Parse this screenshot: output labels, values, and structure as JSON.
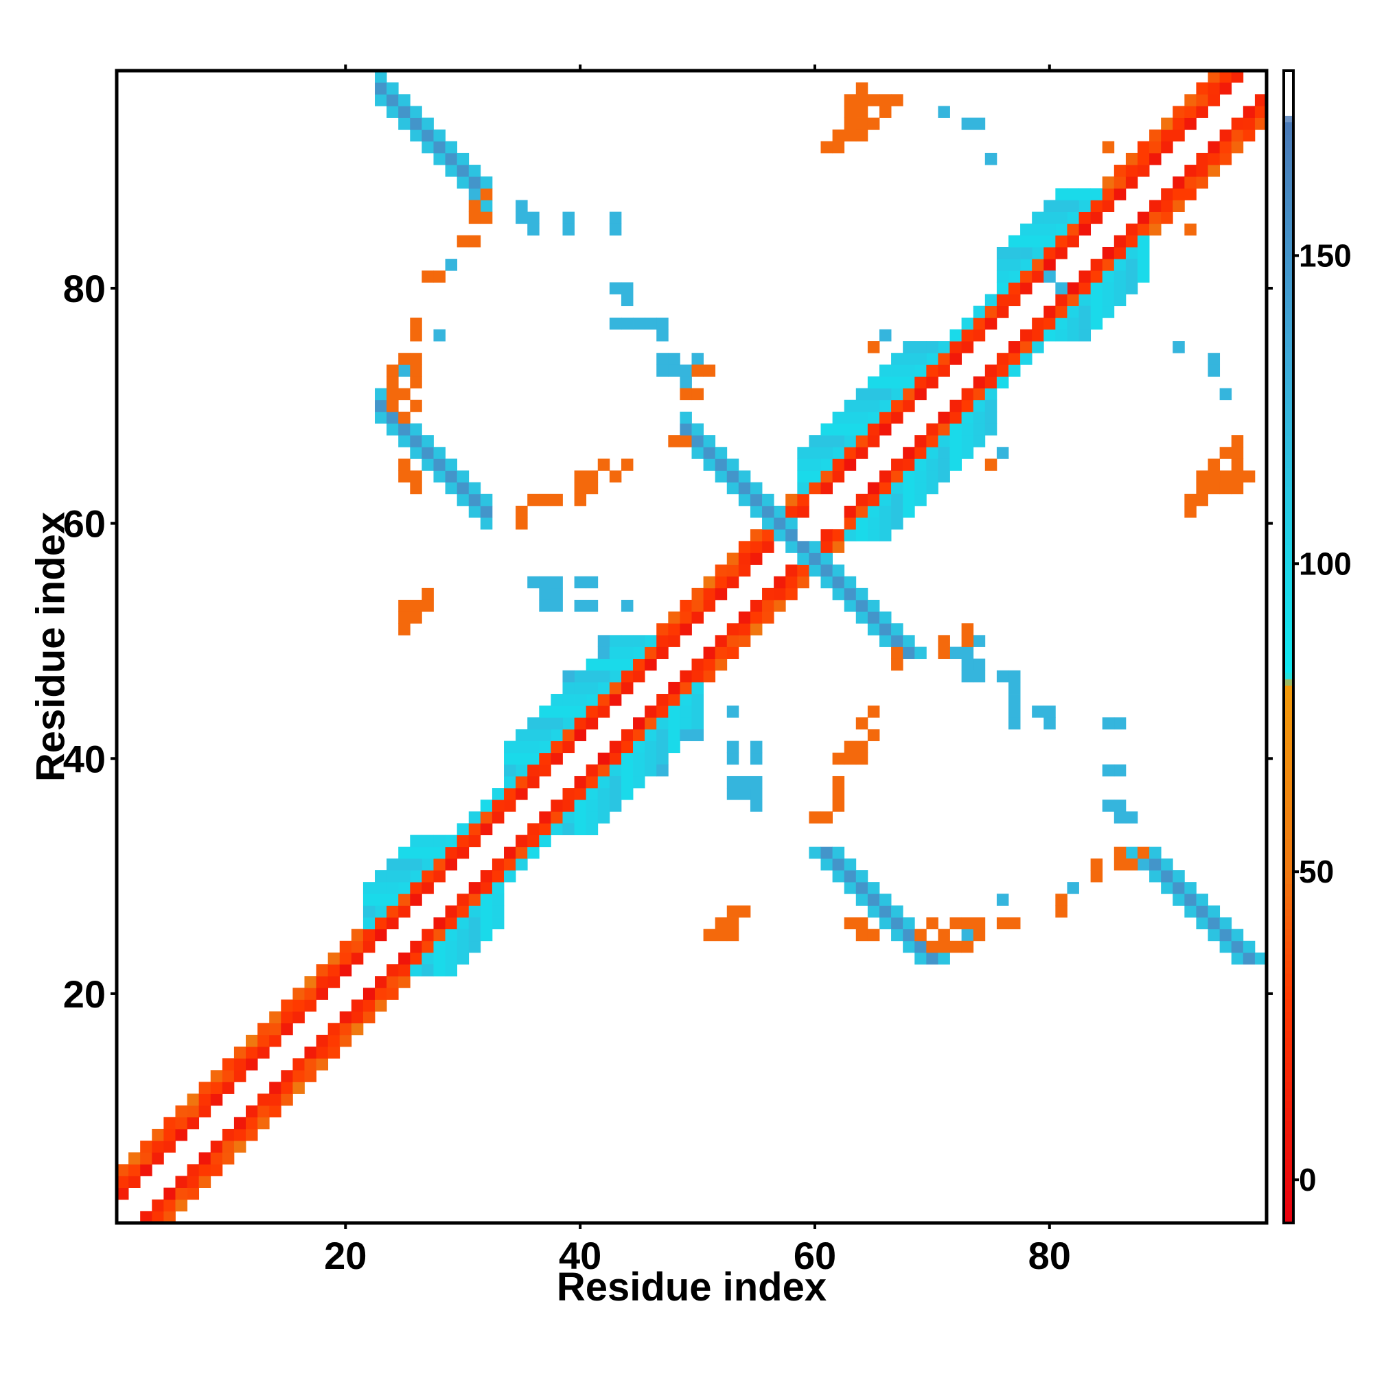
{
  "chart_data": {
    "type": "heatmap",
    "title": "",
    "xlabel": "Residue index",
    "ylabel": "Residue index",
    "xlim": [
      0.5,
      98.5
    ],
    "ylim": [
      0.5,
      98.5
    ],
    "x_ticks": [
      20,
      40,
      60,
      80
    ],
    "y_ticks": [
      20,
      40,
      60,
      80
    ],
    "x_tick_labels": [
      "20",
      "40",
      "60",
      "80"
    ],
    "y_tick_labels": [
      "20",
      "40",
      "60",
      "80"
    ],
    "grid": false,
    "legend": "colorbar-right",
    "colorbar": {
      "range": [
        -7,
        180
      ],
      "ticks": [
        0,
        50,
        100,
        150
      ],
      "tick_labels": [
        "0",
        "50",
        "100",
        "150"
      ],
      "stops": [
        {
          "value": -7,
          "color": "#e8000f"
        },
        {
          "value": 30,
          "color": "#ff3a00"
        },
        {
          "value": 50,
          "color": "#f07810"
        },
        {
          "value": 80,
          "color": "#f39a0a"
        },
        {
          "value": 82,
          "color": "#10e8f0"
        },
        {
          "value": 105,
          "color": "#22d0e6"
        },
        {
          "value": 135,
          "color": "#3fa8d8"
        },
        {
          "value": 172,
          "color": "#4a79b6"
        },
        {
          "value": 173,
          "color": "#ffffff"
        },
        {
          "value": 180,
          "color": "#ffffff"
        }
      ]
    },
    "cell_values": {
      "band_sep2": 5,
      "band_sep3": 22,
      "band_sep4_helix": 48,
      "band_sep4_other": 30,
      "helix_far": 95,
      "sheet": 150,
      "sheet_edge": 115,
      "long_range_close": 45,
      "long_range_mid": 125,
      "long_range_far": 160
    },
    "contact_map": {
      "helices": [
        [
          22,
          33
        ],
        [
          34,
          50
        ],
        [
          59,
          75
        ],
        [
          76,
          88
        ]
      ],
      "diagonal_bands": [
        2,
        3,
        4
      ],
      "strand_pairs": [
        {
          "i": [
            23,
            32
          ],
          "j": [
            88,
            97
          ],
          "orientation": "antiparallel",
          "value": "sheet"
        },
        {
          "i": [
            23,
            32
          ],
          "j": [
            60,
            70
          ],
          "orientation": "antiparallel",
          "value": "sheet"
        },
        {
          "i": [
            49,
            58
          ],
          "j": [
            58,
            68
          ],
          "orientation": "antiparallel",
          "value": "sheet"
        }
      ],
      "point_groups": [
        {
          "value": "long_range_mid",
          "points": [
            [
              31,
              88
            ],
            [
              35,
              87
            ],
            [
              35,
              86
            ],
            [
              39,
              86
            ],
            [
              43,
              86
            ],
            [
              43,
              80
            ],
            [
              44,
              80
            ],
            [
              44,
              79
            ],
            [
              43,
              77
            ],
            [
              44,
              77
            ],
            [
              45,
              77
            ],
            [
              46,
              77
            ],
            [
              47,
              77
            ],
            [
              47,
              76
            ],
            [
              48,
              74
            ],
            [
              48,
              73
            ],
            [
              49,
              73
            ],
            [
              50,
              74
            ],
            [
              36,
              55
            ],
            [
              37,
              55
            ],
            [
              37,
              54
            ],
            [
              37,
              53
            ],
            [
              40,
              55
            ],
            [
              40,
              53
            ],
            [
              41,
              53
            ],
            [
              44,
              53
            ],
            [
              42,
              49
            ],
            [
              39,
              47
            ],
            [
              53,
              44
            ],
            [
              50,
              42
            ],
            [
              53,
              41
            ],
            [
              53,
              40
            ],
            [
              55,
              41
            ],
            [
              53,
              38
            ],
            [
              54,
              38
            ],
            [
              55,
              38
            ],
            [
              55,
              37
            ]
          ]
        },
        {
          "value": "long_range_mid",
          "points": [
            [
              66,
              76
            ],
            [
              72,
              49
            ],
            [
              73,
              47
            ],
            [
              74,
              47
            ],
            [
              76,
              47
            ],
            [
              77,
              47
            ],
            [
              77,
              46
            ],
            [
              77,
              45
            ],
            [
              77,
              44
            ],
            [
              79,
              44
            ],
            [
              80,
              44
            ],
            [
              80,
              43
            ],
            [
              85,
              43
            ],
            [
              85,
              39
            ],
            [
              85,
              36
            ],
            [
              86,
              36
            ],
            [
              76,
              28
            ],
            [
              82,
              29
            ],
            [
              91,
              75
            ],
            [
              94,
              73
            ],
            [
              94,
              74
            ],
            [
              81,
              80
            ],
            [
              25,
              69
            ],
            [
              24,
              72
            ],
            [
              25,
              73
            ],
            [
              71,
              95
            ]
          ]
        },
        {
          "value": "long_range_close",
          "points": [
            [
              27,
              81
            ],
            [
              26,
              77
            ],
            [
              25,
              74
            ],
            [
              26,
              74
            ],
            [
              24,
              73
            ],
            [
              25,
              71
            ],
            [
              26,
              70
            ],
            [
              25,
              69
            ],
            [
              31,
              86
            ],
            [
              32,
              86
            ],
            [
              31,
              87
            ],
            [
              32,
              88
            ],
            [
              35,
              60
            ],
            [
              37,
              62
            ],
            [
              36,
              62
            ],
            [
              40,
              64
            ],
            [
              41,
              64
            ],
            [
              40,
              63
            ],
            [
              40,
              62
            ],
            [
              43,
              64
            ],
            [
              48,
              67
            ],
            [
              49,
              67
            ],
            [
              50,
              73
            ],
            [
              51,
              73
            ],
            [
              25,
              53
            ],
            [
              26,
              53
            ],
            [
              27,
              54
            ],
            [
              25,
              52
            ],
            [
              65,
              44
            ],
            [
              63,
              41
            ],
            [
              64,
              41
            ],
            [
              65,
              42
            ],
            [
              62,
              38
            ],
            [
              62,
              37
            ],
            [
              61,
              35
            ],
            [
              65,
              75
            ],
            [
              63,
              96
            ],
            [
              64,
              95
            ],
            [
              64,
              94
            ],
            [
              65,
              94
            ],
            [
              66,
              95
            ],
            [
              66,
              96
            ],
            [
              67,
              96
            ],
            [
              62,
              93
            ],
            [
              63,
              93
            ],
            [
              64,
              93
            ],
            [
              61,
              92
            ],
            [
              71,
              50
            ],
            [
              71,
              49
            ],
            [
              84,
              31
            ],
            [
              84,
              30
            ],
            [
              81,
              28
            ],
            [
              72,
              26
            ],
            [
              73,
              26
            ],
            [
              74,
              26
            ],
            [
              76,
              26
            ],
            [
              77,
              26
            ],
            [
              53,
              27
            ],
            [
              52,
              26
            ],
            [
              51,
              25
            ],
            [
              52,
              25
            ],
            [
              92,
              62
            ],
            [
              93,
              63
            ],
            [
              94,
              63
            ],
            [
              95,
              63
            ],
            [
              96,
              64
            ],
            [
              96,
              65
            ],
            [
              97,
              64
            ],
            [
              70,
              24
            ],
            [
              71,
              24
            ],
            [
              72,
              24
            ],
            [
              73,
              24
            ],
            [
              63,
              26
            ],
            [
              64,
              26
            ],
            [
              64,
              25
            ],
            [
              65,
              25
            ],
            [
              92,
              85
            ]
          ]
        }
      ],
      "clear_points": [
        [
          63,
          63
        ],
        [
          62,
          60
        ]
      ]
    }
  }
}
